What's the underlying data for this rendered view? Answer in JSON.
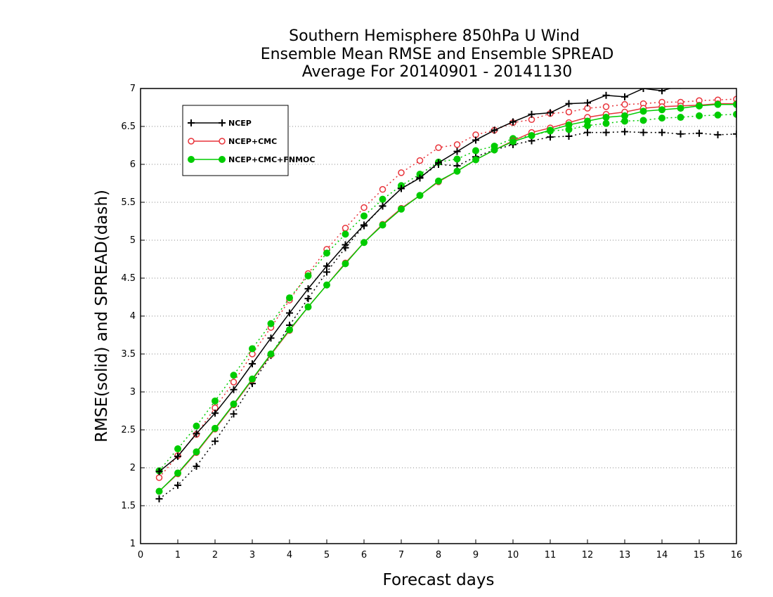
{
  "chart_data": {
    "type": "line",
    "title_lines": [
      "Southern Hemisphere 850hPa U Wind",
      "Ensemble Mean RMSE and Ensemble SPREAD",
      "Average For 20140901 - 20141130"
    ],
    "xlabel": "Forecast days",
    "ylabel": "RMSE(solid) and SPREAD(dash)",
    "xlim": [
      0,
      16
    ],
    "ylim": [
      1,
      7
    ],
    "xticks": [
      0,
      1,
      2,
      3,
      4,
      5,
      6,
      7,
      8,
      9,
      10,
      11,
      12,
      13,
      14,
      15,
      16
    ],
    "yticks": [
      1,
      1.5,
      2,
      2.5,
      3,
      3.5,
      4,
      4.5,
      5,
      5.5,
      6,
      6.5,
      7
    ],
    "grid": "horizontal dotted",
    "legend_placement": "top-left",
    "x": [
      0.5,
      1,
      1.5,
      2,
      2.5,
      3,
      3.5,
      4,
      4.5,
      5,
      5.5,
      6,
      6.5,
      7,
      7.5,
      8,
      8.5,
      9,
      9.5,
      10,
      10.5,
      11,
      11.5,
      12,
      12.5,
      13,
      13.5,
      14,
      14.5,
      15,
      15.5,
      16
    ],
    "series": [
      {
        "name": "NCEP",
        "kind": "rmse",
        "color": "#000000",
        "marker": "plus",
        "values": [
          1.95,
          2.15,
          2.45,
          2.72,
          3.03,
          3.37,
          3.71,
          4.04,
          4.36,
          4.66,
          4.94,
          5.2,
          5.45,
          5.68,
          5.82,
          6.02,
          6.17,
          6.32,
          6.45,
          6.56,
          6.66,
          6.68,
          6.8,
          6.81,
          6.91,
          6.89,
          7.0,
          6.97,
          7.04,
          7.09,
          7.12,
          7.17
        ]
      },
      {
        "name": "NCEP+CMC",
        "kind": "rmse",
        "color": "#e8333a",
        "marker": "circle-open",
        "values": [
          1.69,
          1.92,
          2.2,
          2.51,
          2.83,
          3.16,
          3.49,
          3.81,
          4.12,
          4.41,
          4.7,
          4.97,
          5.21,
          5.42,
          5.59,
          5.77,
          5.91,
          6.06,
          6.19,
          6.31,
          6.42,
          6.48,
          6.55,
          6.62,
          6.66,
          6.69,
          6.74,
          6.76,
          6.77,
          6.78,
          6.8,
          6.8
        ]
      },
      {
        "name": "NCEP+CMC+FNMOC",
        "kind": "rmse",
        "color": "#00cc00",
        "marker": "circle-filled",
        "values": [
          1.69,
          1.93,
          2.21,
          2.52,
          2.84,
          3.17,
          3.5,
          3.82,
          4.12,
          4.41,
          4.69,
          4.97,
          5.2,
          5.41,
          5.59,
          5.78,
          5.91,
          6.06,
          6.19,
          6.3,
          6.38,
          6.45,
          6.52,
          6.57,
          6.62,
          6.64,
          6.7,
          6.72,
          6.74,
          6.77,
          6.79,
          6.79
        ]
      },
      {
        "name": "NCEP",
        "kind": "spread",
        "color": "#000000",
        "marker": "plus",
        "values": [
          1.59,
          1.77,
          2.02,
          2.35,
          2.71,
          3.11,
          3.48,
          3.88,
          4.23,
          4.58,
          4.9,
          5.19,
          5.45,
          5.68,
          5.83,
          6.0,
          5.98,
          6.1,
          6.19,
          6.26,
          6.31,
          6.36,
          6.37,
          6.42,
          6.42,
          6.43,
          6.42,
          6.42,
          6.4,
          6.41,
          6.39,
          6.4
        ]
      },
      {
        "name": "NCEP+CMC",
        "kind": "spread",
        "color": "#e8333a",
        "marker": "circle-open",
        "values": [
          1.87,
          2.16,
          2.44,
          2.79,
          3.13,
          3.5,
          3.85,
          4.21,
          4.56,
          4.88,
          5.16,
          5.43,
          5.67,
          5.89,
          6.05,
          6.22,
          6.26,
          6.39,
          6.45,
          6.55,
          6.59,
          6.67,
          6.69,
          6.74,
          6.76,
          6.79,
          6.8,
          6.82,
          6.82,
          6.84,
          6.85,
          6.86
        ]
      },
      {
        "name": "NCEP+CMC+FNMOC",
        "kind": "spread",
        "color": "#00cc00",
        "marker": "circle-filled",
        "values": [
          1.96,
          2.25,
          2.55,
          2.88,
          3.22,
          3.57,
          3.9,
          4.24,
          4.53,
          4.83,
          5.08,
          5.32,
          5.54,
          5.72,
          5.87,
          6.03,
          6.07,
          6.18,
          6.24,
          6.34,
          6.38,
          6.44,
          6.46,
          6.51,
          6.54,
          6.57,
          6.58,
          6.61,
          6.62,
          6.64,
          6.65,
          6.66
        ]
      }
    ]
  }
}
